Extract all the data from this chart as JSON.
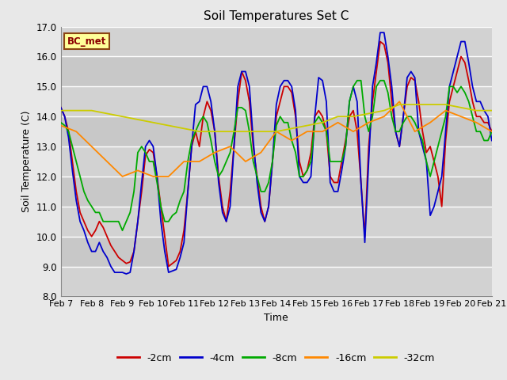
{
  "title": "Soil Temperatures Set C",
  "xlabel": "Time",
  "ylabel": "Soil Temperature (C)",
  "ylim": [
    8.0,
    17.0
  ],
  "yticks": [
    8.0,
    9.0,
    10.0,
    11.0,
    12.0,
    13.0,
    14.0,
    15.0,
    16.0,
    17.0
  ],
  "background_color": "#e8e8e8",
  "label_box": "BC_met",
  "series": {
    "-2cm": {
      "color": "#cc0000",
      "lw": 1.3,
      "x": [
        0,
        0.125,
        0.25,
        0.375,
        0.5,
        0.625,
        0.75,
        0.875,
        1.0,
        1.125,
        1.25,
        1.375,
        1.5,
        1.625,
        1.75,
        1.875,
        2.0,
        2.125,
        2.25,
        2.375,
        2.5,
        2.625,
        2.75,
        2.875,
        3.0,
        3.125,
        3.25,
        3.375,
        3.5,
        3.625,
        3.75,
        3.875,
        4.0,
        4.125,
        4.25,
        4.375,
        4.5,
        4.625,
        4.75,
        4.875,
        5.0,
        5.125,
        5.25,
        5.375,
        5.5,
        5.625,
        5.75,
        5.875,
        6.0,
        6.125,
        6.25,
        6.375,
        6.5,
        6.625,
        6.75,
        6.875,
        7.0,
        7.125,
        7.25,
        7.375,
        7.5,
        7.625,
        7.75,
        7.875,
        8.0,
        8.125,
        8.25,
        8.375,
        8.5,
        8.625,
        8.75,
        8.875,
        9.0,
        9.125,
        9.25,
        9.375,
        9.5,
        9.625,
        9.75,
        9.875,
        10.0,
        10.125,
        10.25,
        10.375,
        10.5,
        10.625,
        10.75,
        10.875,
        11.0,
        11.125,
        11.25,
        11.375,
        11.5,
        11.625,
        11.75,
        11.875,
        12.0,
        12.125,
        12.25,
        12.375,
        12.5,
        12.625,
        12.75,
        12.875,
        13.0,
        13.125,
        13.25,
        13.375,
        13.5,
        13.625,
        13.75,
        13.875,
        14.0
      ],
      "y": [
        14.3,
        14.0,
        13.5,
        12.5,
        11.5,
        10.8,
        10.5,
        10.2,
        10.0,
        10.2,
        10.5,
        10.3,
        10.0,
        9.7,
        9.5,
        9.3,
        9.2,
        9.1,
        9.15,
        9.5,
        10.5,
        11.5,
        12.7,
        12.9,
        12.8,
        12.0,
        11.0,
        10.0,
        9.0,
        9.1,
        9.2,
        9.5,
        10.2,
        11.5,
        13.0,
        13.5,
        13.0,
        14.0,
        14.5,
        14.2,
        13.5,
        12.0,
        11.0,
        10.5,
        11.5,
        13.0,
        14.5,
        15.5,
        15.2,
        14.5,
        13.0,
        12.0,
        11.0,
        10.5,
        11.0,
        12.5,
        14.0,
        14.5,
        15.0,
        15.0,
        14.8,
        14.0,
        12.5,
        12.0,
        12.2,
        12.8,
        14.0,
        14.2,
        14.0,
        13.5,
        12.0,
        11.8,
        11.8,
        12.5,
        13.2,
        14.0,
        14.2,
        13.5,
        11.8,
        10.0,
        13.0,
        14.5,
        15.5,
        16.5,
        16.4,
        15.8,
        14.5,
        13.5,
        13.0,
        14.0,
        15.0,
        15.3,
        15.2,
        14.5,
        13.5,
        12.8,
        13.0,
        12.5,
        12.0,
        11.0,
        13.2,
        14.5,
        15.0,
        15.5,
        16.0,
        15.8,
        15.2,
        14.5,
        14.0,
        14.0,
        13.8,
        13.8,
        13.5
      ]
    },
    "-4cm": {
      "color": "#0000cc",
      "lw": 1.3,
      "x": [
        0,
        0.125,
        0.25,
        0.375,
        0.5,
        0.625,
        0.75,
        0.875,
        1.0,
        1.125,
        1.25,
        1.375,
        1.5,
        1.625,
        1.75,
        1.875,
        2.0,
        2.125,
        2.25,
        2.375,
        2.5,
        2.625,
        2.75,
        2.875,
        3.0,
        3.125,
        3.25,
        3.375,
        3.5,
        3.625,
        3.75,
        3.875,
        4.0,
        4.125,
        4.25,
        4.375,
        4.5,
        4.625,
        4.75,
        4.875,
        5.0,
        5.125,
        5.25,
        5.375,
        5.5,
        5.625,
        5.75,
        5.875,
        6.0,
        6.125,
        6.25,
        6.375,
        6.5,
        6.625,
        6.75,
        6.875,
        7.0,
        7.125,
        7.25,
        7.375,
        7.5,
        7.625,
        7.75,
        7.875,
        8.0,
        8.125,
        8.25,
        8.375,
        8.5,
        8.625,
        8.75,
        8.875,
        9.0,
        9.125,
        9.25,
        9.375,
        9.5,
        9.625,
        9.75,
        9.875,
        10.0,
        10.125,
        10.25,
        10.375,
        10.5,
        10.625,
        10.75,
        10.875,
        11.0,
        11.125,
        11.25,
        11.375,
        11.5,
        11.625,
        11.75,
        11.875,
        12.0,
        12.125,
        12.25,
        12.375,
        12.5,
        12.625,
        12.75,
        12.875,
        13.0,
        13.125,
        13.25,
        13.375,
        13.5,
        13.625,
        13.75,
        13.875,
        14.0
      ],
      "y": [
        14.3,
        14.0,
        13.3,
        12.2,
        11.2,
        10.5,
        10.2,
        9.8,
        9.5,
        9.5,
        9.8,
        9.5,
        9.3,
        9.0,
        8.8,
        8.8,
        8.8,
        8.75,
        8.8,
        9.5,
        10.5,
        11.8,
        13.0,
        13.2,
        13.0,
        12.0,
        10.5,
        9.5,
        8.8,
        8.85,
        8.9,
        9.3,
        9.8,
        11.5,
        13.0,
        14.4,
        14.5,
        15.0,
        15.0,
        14.5,
        13.5,
        11.8,
        10.8,
        10.5,
        11.0,
        13.0,
        15.0,
        15.5,
        15.5,
        15.0,
        13.2,
        11.8,
        10.8,
        10.5,
        11.0,
        12.5,
        14.4,
        15.0,
        15.2,
        15.2,
        15.0,
        14.2,
        12.0,
        11.8,
        11.8,
        12.0,
        14.0,
        15.3,
        15.2,
        14.5,
        11.8,
        11.5,
        11.5,
        12.2,
        13.0,
        14.5,
        15.0,
        14.5,
        11.8,
        9.8,
        12.5,
        15.0,
        15.8,
        16.8,
        16.8,
        16.0,
        15.0,
        13.5,
        13.0,
        14.0,
        15.3,
        15.5,
        15.3,
        13.5,
        13.0,
        12.5,
        10.7,
        11.0,
        11.5,
        12.0,
        13.5,
        15.0,
        15.5,
        16.0,
        16.5,
        16.5,
        15.8,
        15.0,
        14.5,
        14.5,
        14.2,
        14.0,
        13.2
      ]
    },
    "-8cm": {
      "color": "#00aa00",
      "lw": 1.3,
      "x": [
        0,
        0.125,
        0.25,
        0.375,
        0.5,
        0.625,
        0.75,
        0.875,
        1.0,
        1.125,
        1.25,
        1.375,
        1.5,
        1.625,
        1.75,
        1.875,
        2.0,
        2.125,
        2.25,
        2.375,
        2.5,
        2.625,
        2.75,
        2.875,
        3.0,
        3.125,
        3.25,
        3.375,
        3.5,
        3.625,
        3.75,
        3.875,
        4.0,
        4.125,
        4.25,
        4.375,
        4.5,
        4.625,
        4.75,
        4.875,
        5.0,
        5.125,
        5.25,
        5.375,
        5.5,
        5.625,
        5.75,
        5.875,
        6.0,
        6.125,
        6.25,
        6.375,
        6.5,
        6.625,
        6.75,
        6.875,
        7.0,
        7.125,
        7.25,
        7.375,
        7.5,
        7.625,
        7.75,
        7.875,
        8.0,
        8.125,
        8.25,
        8.375,
        8.5,
        8.625,
        8.75,
        8.875,
        9.0,
        9.125,
        9.25,
        9.375,
        9.5,
        9.625,
        9.75,
        9.875,
        10.0,
        10.125,
        10.25,
        10.375,
        10.5,
        10.625,
        10.75,
        10.875,
        11.0,
        11.125,
        11.25,
        11.375,
        11.5,
        11.625,
        11.75,
        11.875,
        12.0,
        12.125,
        12.25,
        12.375,
        12.5,
        12.625,
        12.75,
        12.875,
        13.0,
        13.125,
        13.25,
        13.375,
        13.5,
        13.625,
        13.75,
        13.875,
        14.0
      ],
      "y": [
        13.8,
        13.7,
        13.5,
        13.0,
        12.5,
        12.0,
        11.5,
        11.2,
        11.0,
        10.8,
        10.8,
        10.5,
        10.5,
        10.5,
        10.5,
        10.5,
        10.2,
        10.5,
        10.8,
        11.5,
        12.8,
        13.0,
        12.8,
        12.5,
        12.5,
        11.8,
        11.0,
        10.5,
        10.5,
        10.7,
        10.8,
        11.2,
        11.5,
        12.5,
        13.2,
        13.5,
        13.8,
        14.0,
        13.8,
        13.2,
        12.5,
        12.0,
        12.2,
        12.5,
        12.8,
        13.5,
        14.3,
        14.3,
        14.2,
        13.5,
        12.5,
        12.0,
        11.5,
        11.5,
        11.8,
        12.5,
        13.7,
        14.0,
        13.8,
        13.8,
        13.2,
        12.8,
        12.0,
        12.0,
        12.2,
        12.5,
        13.8,
        14.0,
        13.8,
        13.5,
        12.5,
        12.5,
        12.5,
        12.5,
        13.0,
        14.5,
        15.0,
        15.2,
        15.2,
        14.0,
        13.5,
        14.0,
        15.0,
        15.2,
        15.2,
        14.8,
        14.0,
        13.5,
        13.5,
        13.8,
        14.0,
        14.0,
        13.8,
        13.5,
        13.2,
        12.5,
        12.0,
        12.5,
        13.0,
        13.5,
        14.0,
        15.0,
        15.0,
        14.8,
        15.0,
        14.8,
        14.5,
        14.0,
        13.5,
        13.5,
        13.2,
        13.2,
        13.5
      ]
    },
    "-16cm": {
      "color": "#ff8800",
      "lw": 1.3,
      "x": [
        0,
        0.5,
        1.0,
        1.5,
        2.0,
        2.5,
        3.0,
        3.5,
        4.0,
        4.5,
        5.0,
        5.5,
        6.0,
        6.5,
        7.0,
        7.5,
        8.0,
        8.5,
        9.0,
        9.5,
        10.0,
        10.5,
        11.0,
        11.5,
        12.0,
        12.5,
        13.0,
        13.5,
        14.0
      ],
      "y": [
        13.7,
        13.5,
        13.0,
        12.5,
        12.0,
        12.2,
        12.0,
        12.0,
        12.5,
        12.5,
        12.8,
        13.0,
        12.5,
        12.8,
        13.5,
        13.2,
        13.5,
        13.5,
        13.8,
        13.5,
        13.8,
        14.0,
        14.5,
        13.5,
        13.8,
        14.2,
        14.0,
        13.8,
        13.5
      ]
    },
    "-32cm": {
      "color": "#cccc00",
      "lw": 1.3,
      "x": [
        0,
        0.5,
        1.0,
        1.5,
        2.0,
        2.5,
        3.0,
        3.5,
        4.0,
        4.5,
        5.0,
        5.5,
        6.0,
        6.5,
        7.0,
        7.5,
        8.0,
        8.5,
        9.0,
        9.5,
        10.0,
        10.5,
        11.0,
        11.5,
        12.0,
        12.5,
        13.0,
        13.5,
        14.0
      ],
      "y": [
        14.2,
        14.2,
        14.2,
        14.1,
        14.0,
        13.9,
        13.8,
        13.7,
        13.6,
        13.5,
        13.5,
        13.5,
        13.5,
        13.5,
        13.5,
        13.6,
        13.7,
        13.8,
        14.0,
        14.0,
        14.1,
        14.2,
        14.4,
        14.4,
        14.4,
        14.4,
        14.3,
        14.2,
        14.2
      ]
    }
  },
  "xtick_positions": [
    0,
    1,
    2,
    3,
    4,
    5,
    6,
    7,
    8,
    9,
    10,
    11,
    12,
    13,
    14
  ],
  "xtick_labels": [
    "Feb 7",
    "Feb 8",
    "Feb 9",
    "Feb 10",
    "Feb 11",
    "Feb 12",
    "Feb 13",
    "Feb 14",
    "Feb 15",
    "Feb 16",
    "Feb 17",
    "Feb 18",
    "Feb 19",
    "Feb 20",
    "Feb 21"
  ],
  "legend_order": [
    "-2cm",
    "-4cm",
    "-8cm",
    "-16cm",
    "-32cm"
  ],
  "fig_width": 6.4,
  "fig_height": 4.8,
  "dpi": 100
}
